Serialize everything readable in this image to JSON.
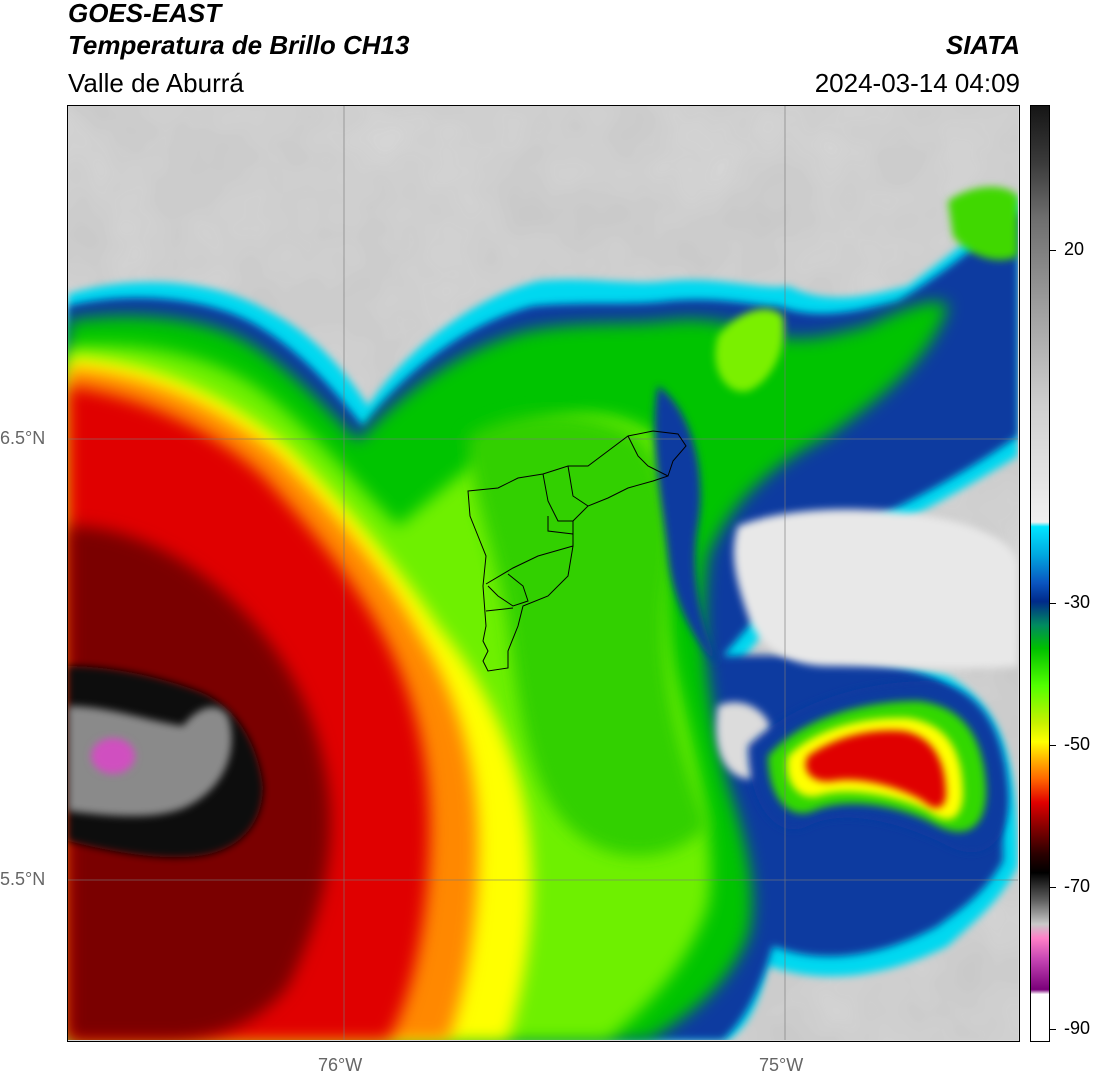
{
  "header": {
    "satellite": "GOES-EAST",
    "product": "Temperatura de Brillo CH13",
    "region": "Valle de Aburrá",
    "organization": "SIATA",
    "datetime": "2024-03-14 04:09"
  },
  "map": {
    "lat_labels": [
      "6.5°N",
      "5.5°N"
    ],
    "lon_labels": [
      "76°W",
      "75°W"
    ]
  },
  "colorbar": {
    "ticks": [
      "20",
      "-30",
      "-50",
      "-70",
      "-90"
    ],
    "colors": {
      "warm": "#d0d0d0",
      "cyan": "#00d8f0",
      "blue": "#002a8a",
      "green": "#00c000",
      "yellow": "#ffff00",
      "orange": "#ff8800",
      "red": "#e00000",
      "darkred": "#6a0000",
      "black": "#000000",
      "magenta": "#c040b0"
    }
  }
}
